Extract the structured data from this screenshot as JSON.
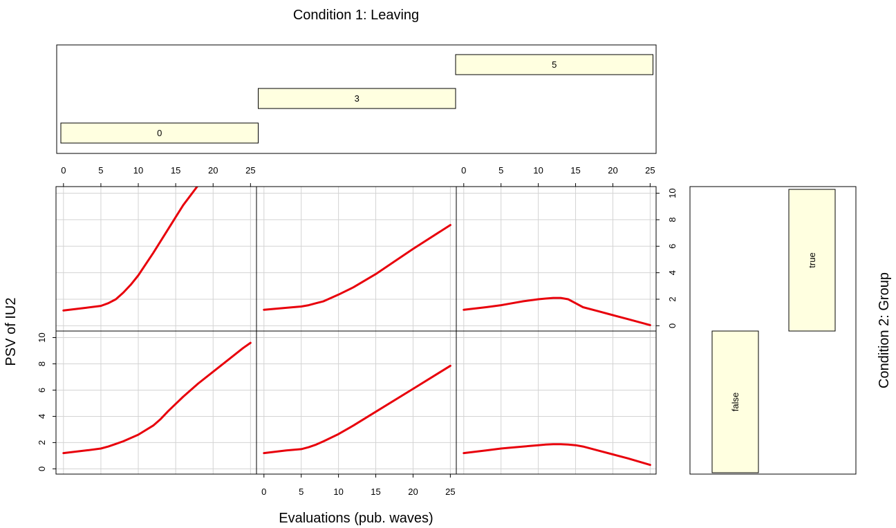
{
  "chart_data": {
    "type": "line",
    "title": "Condition 1: Leaving",
    "xlabel": "Evaluations (pub. waves)",
    "ylabel": "PSV of IU2",
    "row_condition_label": "Condition 2: Group",
    "x_ticks": [
      0,
      5,
      10,
      15,
      20,
      25
    ],
    "y_ticks": [
      0,
      2,
      4,
      6,
      8,
      10
    ],
    "xlim": [
      -1,
      25.8
    ],
    "ylim": [
      -0.4,
      10.5
    ],
    "grid": true,
    "columns": [
      {
        "label": "0",
        "level": 0
      },
      {
        "label": "3",
        "level": 1
      },
      {
        "label": "5",
        "level": 2
      }
    ],
    "rows": [
      {
        "label": "true",
        "level": 1
      },
      {
        "label": "false",
        "level": 0
      }
    ],
    "panels": [
      {
        "row": "true",
        "column": "0",
        "x": [
          0,
          3,
          5,
          6,
          7,
          8,
          9,
          10,
          12,
          14,
          16,
          18
        ],
        "y": [
          1.15,
          1.35,
          1.5,
          1.7,
          2.0,
          2.5,
          3.1,
          3.8,
          5.5,
          7.3,
          9.1,
          10.6
        ]
      },
      {
        "row": "true",
        "column": "3",
        "x": [
          0,
          3,
          5,
          6,
          7,
          8,
          10,
          12,
          15,
          20,
          25
        ],
        "y": [
          1.2,
          1.35,
          1.45,
          1.55,
          1.7,
          1.85,
          2.35,
          2.9,
          3.9,
          5.8,
          7.6
        ]
      },
      {
        "row": "true",
        "column": "5",
        "x": [
          0,
          3,
          5,
          6,
          8,
          10,
          11,
          12,
          13,
          14,
          15,
          16,
          18,
          20,
          22,
          25
        ],
        "y": [
          1.2,
          1.4,
          1.55,
          1.65,
          1.85,
          2.0,
          2.05,
          2.1,
          2.1,
          2.0,
          1.7,
          1.4,
          1.1,
          0.8,
          0.5,
          0.05
        ]
      },
      {
        "row": "false",
        "column": "0",
        "x": [
          0,
          3,
          5,
          6,
          7,
          8,
          10,
          12,
          13,
          14,
          16,
          18,
          20,
          22,
          24,
          25
        ],
        "y": [
          1.2,
          1.4,
          1.55,
          1.7,
          1.9,
          2.1,
          2.6,
          3.3,
          3.8,
          4.4,
          5.5,
          6.5,
          7.4,
          8.3,
          9.2,
          9.6
        ]
      },
      {
        "row": "false",
        "column": "3",
        "x": [
          0,
          3,
          5,
          6,
          7,
          8,
          10,
          12,
          15,
          20,
          25
        ],
        "y": [
          1.2,
          1.4,
          1.5,
          1.65,
          1.85,
          2.1,
          2.65,
          3.3,
          4.35,
          6.1,
          7.85
        ]
      },
      {
        "row": "false",
        "column": "5",
        "x": [
          0,
          3,
          5,
          6,
          8,
          10,
          11,
          12,
          13,
          14,
          15,
          16,
          18,
          20,
          22,
          25
        ],
        "y": [
          1.2,
          1.4,
          1.55,
          1.6,
          1.7,
          1.8,
          1.85,
          1.88,
          1.88,
          1.85,
          1.8,
          1.7,
          1.4,
          1.1,
          0.8,
          0.3
        ]
      }
    ],
    "colors": {
      "line": "#e8000b",
      "strip": "#ffffe0",
      "grid": "#d3d3d3"
    }
  }
}
